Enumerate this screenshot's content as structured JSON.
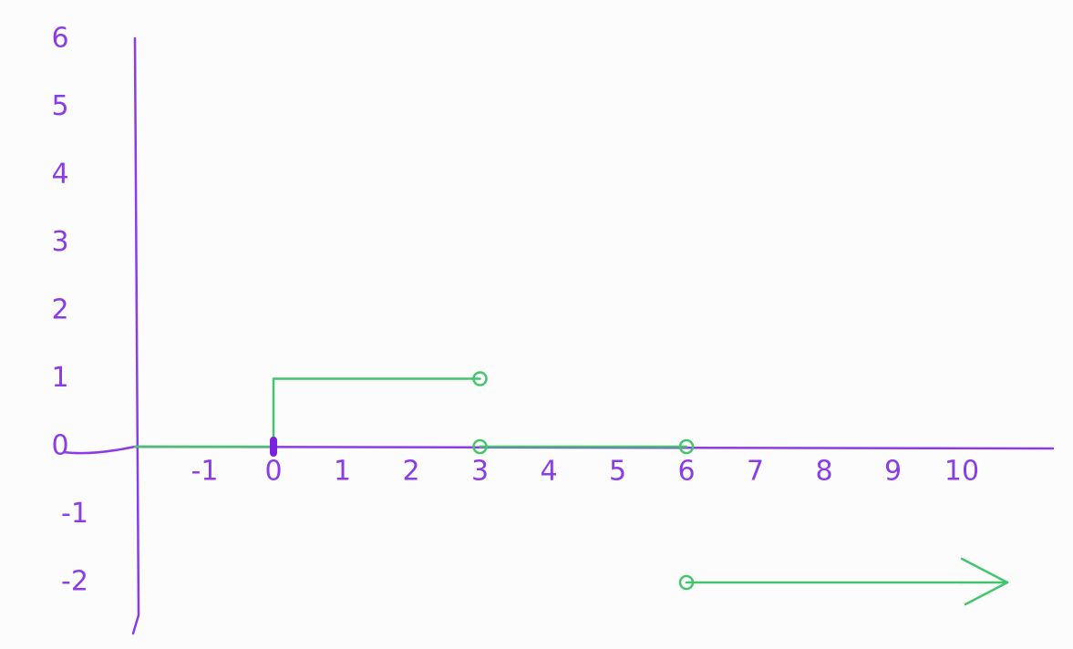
{
  "chart_data": {
    "type": "line",
    "title": "",
    "xlabel": "",
    "ylabel": "",
    "xlim": [
      -2,
      11
    ],
    "ylim": [
      -3,
      6
    ],
    "x_ticks": [
      {
        "value": -1,
        "label": "-1"
      },
      {
        "value": 0,
        "label": "0"
      },
      {
        "value": 1,
        "label": "1"
      },
      {
        "value": 2,
        "label": "2"
      },
      {
        "value": 3,
        "label": "3"
      },
      {
        "value": 4,
        "label": "4"
      },
      {
        "value": 5,
        "label": "5"
      },
      {
        "value": 6,
        "label": "6"
      },
      {
        "value": 7,
        "label": "7"
      },
      {
        "value": 8,
        "label": "8"
      },
      {
        "value": 9,
        "label": "9"
      },
      {
        "value": 10,
        "label": "10"
      }
    ],
    "y_ticks": [
      {
        "value": 6,
        "label": "6"
      },
      {
        "value": 5,
        "label": "5"
      },
      {
        "value": 4,
        "label": "4"
      },
      {
        "value": 3,
        "label": "3"
      },
      {
        "value": 2,
        "label": "2"
      },
      {
        "value": 1,
        "label": "1"
      },
      {
        "value": 0,
        "label": "0"
      },
      {
        "value": -1,
        "label": "-1"
      },
      {
        "value": -2,
        "label": "-2"
      }
    ],
    "grid": false,
    "legend": "none",
    "colors": {
      "axes": "#8b3ce6",
      "series": "#43c56e",
      "closed_point": "#7a22e0"
    },
    "segments": [
      {
        "x": [
          -2,
          0
        ],
        "y": [
          0,
          0
        ],
        "start_marker": "none",
        "end_marker": "closed",
        "arrow": false
      },
      {
        "x": [
          0,
          3
        ],
        "y": [
          1,
          1
        ],
        "start_marker": "none",
        "end_marker": "open",
        "arrow": false
      },
      {
        "x": [
          3,
          6
        ],
        "y": [
          0,
          0
        ],
        "start_marker": "open",
        "end_marker": "open",
        "arrow": false
      },
      {
        "x": [
          6,
          10
        ],
        "y": [
          -2,
          -2
        ],
        "start_marker": "open",
        "end_marker": "none",
        "arrow": true
      }
    ],
    "jumps": [
      {
        "x": 0,
        "y": [
          0,
          1
        ]
      }
    ]
  }
}
